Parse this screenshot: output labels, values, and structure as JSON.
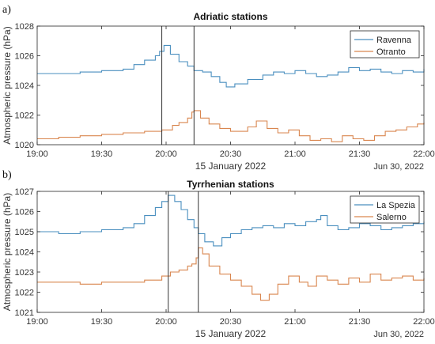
{
  "chart_data": [
    {
      "type": "line",
      "panel_label": "a)",
      "title": "Adriatic stations",
      "ylabel": "Atmospheric pressure (hPa)",
      "xlabel": "15 January 2022",
      "corner_text": "Jun 30, 2022",
      "x_unit": "time HH:MM",
      "xlim": [
        "19:00",
        "22:00"
      ],
      "x_ticks": [
        "19:00",
        "19:30",
        "20:00",
        "20:30",
        "21:00",
        "21:30",
        "22:00"
      ],
      "ylim": [
        1020,
        1028
      ],
      "y_ticks": [
        1020,
        1022,
        1024,
        1026,
        1028
      ],
      "legend_position": "top-right",
      "vlines": [
        "19:58",
        "20:13"
      ],
      "series": [
        {
          "name": "Ravenna",
          "color": "#4a8fbf",
          "x": [
            "19:00",
            "19:10",
            "19:20",
            "19:30",
            "19:40",
            "19:45",
            "19:50",
            "19:55",
            "19:57",
            "19:59",
            "20:02",
            "20:06",
            "20:10",
            "20:13",
            "20:17",
            "20:21",
            "20:25",
            "20:28",
            "20:32",
            "20:38",
            "20:45",
            "20:50",
            "20:55",
            "21:00",
            "21:05",
            "21:10",
            "21:15",
            "21:20",
            "21:25",
            "21:30",
            "21:35",
            "21:40",
            "21:45",
            "21:50",
            "21:55",
            "22:00"
          ],
          "y": [
            1024.8,
            1024.8,
            1024.9,
            1025.0,
            1025.1,
            1025.4,
            1025.7,
            1026.0,
            1026.3,
            1026.7,
            1026.1,
            1025.6,
            1025.3,
            1025.0,
            1024.9,
            1024.6,
            1024.2,
            1023.9,
            1024.1,
            1024.4,
            1024.7,
            1024.9,
            1024.8,
            1025.0,
            1024.8,
            1024.6,
            1024.7,
            1024.9,
            1025.2,
            1025.0,
            1025.1,
            1024.9,
            1024.8,
            1025.0,
            1024.9,
            1025.1
          ]
        },
        {
          "name": "Otranto",
          "color": "#d9864f",
          "x": [
            "19:00",
            "19:10",
            "19:20",
            "19:30",
            "19:40",
            "19:50",
            "19:58",
            "20:03",
            "20:06",
            "20:10",
            "20:12",
            "20:13",
            "20:16",
            "20:20",
            "20:25",
            "20:30",
            "20:38",
            "20:42",
            "20:47",
            "20:52",
            "20:57",
            "21:02",
            "21:07",
            "21:12",
            "21:17",
            "21:22",
            "21:27",
            "21:32",
            "21:37",
            "21:42",
            "21:47",
            "21:52",
            "21:57",
            "22:00"
          ],
          "y": [
            1020.4,
            1020.5,
            1020.6,
            1020.7,
            1020.8,
            1020.9,
            1021.0,
            1021.3,
            1021.5,
            1021.8,
            1022.2,
            1022.3,
            1021.8,
            1021.4,
            1021.1,
            1020.9,
            1021.2,
            1021.6,
            1021.1,
            1020.8,
            1021.0,
            1020.6,
            1020.3,
            1020.4,
            1020.2,
            1020.6,
            1020.4,
            1020.3,
            1020.6,
            1020.9,
            1021.0,
            1021.2,
            1021.4,
            1021.5
          ]
        }
      ]
    },
    {
      "type": "line",
      "panel_label": "b)",
      "title": "Tyrrhenian stations",
      "ylabel": "Atmospheric pressure (hPa)",
      "xlabel": "15 January 2022",
      "corner_text": "Jun 30, 2022",
      "x_unit": "time HH:MM",
      "xlim": [
        "19:00",
        "22:00"
      ],
      "x_ticks": [
        "19:00",
        "19:30",
        "20:00",
        "20:30",
        "21:00",
        "21:30",
        "22:00"
      ],
      "ylim": [
        1021,
        1027
      ],
      "y_ticks": [
        1021,
        1022,
        1023,
        1024,
        1025,
        1026,
        1027
      ],
      "legend_position": "top-right",
      "vlines": [
        "20:01",
        "20:15"
      ],
      "series": [
        {
          "name": "La Spezia",
          "color": "#4a8fbf",
          "x": [
            "19:00",
            "19:10",
            "19:20",
            "19:30",
            "19:40",
            "19:45",
            "19:50",
            "19:55",
            "19:58",
            "20:01",
            "20:04",
            "20:07",
            "20:10",
            "20:13",
            "20:15",
            "20:18",
            "20:22",
            "20:26",
            "20:30",
            "20:35",
            "20:40",
            "20:45",
            "20:50",
            "20:55",
            "21:00",
            "21:05",
            "21:10",
            "21:12",
            "21:15",
            "21:20",
            "21:25",
            "21:30",
            "21:35",
            "21:40",
            "21:45",
            "21:50",
            "21:55",
            "22:00"
          ],
          "y": [
            1025.0,
            1024.9,
            1025.0,
            1025.1,
            1025.2,
            1025.4,
            1025.8,
            1026.2,
            1026.5,
            1026.8,
            1026.5,
            1026.1,
            1025.6,
            1025.2,
            1024.9,
            1024.5,
            1024.3,
            1024.7,
            1024.9,
            1025.1,
            1025.2,
            1025.3,
            1025.2,
            1025.4,
            1025.3,
            1025.5,
            1025.6,
            1025.8,
            1025.3,
            1025.1,
            1025.2,
            1025.4,
            1025.3,
            1025.1,
            1025.2,
            1025.3,
            1025.4,
            1025.5
          ]
        },
        {
          "name": "Salerno",
          "color": "#d9864f",
          "x": [
            "19:00",
            "19:10",
            "19:20",
            "19:30",
            "19:40",
            "19:50",
            "19:58",
            "20:02",
            "20:06",
            "20:10",
            "20:12",
            "20:14",
            "20:15",
            "20:17",
            "20:20",
            "20:25",
            "20:30",
            "20:35",
            "20:40",
            "20:44",
            "20:48",
            "20:52",
            "20:57",
            "21:02",
            "21:06",
            "21:10",
            "21:15",
            "21:20",
            "21:25",
            "21:30",
            "21:35",
            "21:40",
            "21:45",
            "21:50",
            "21:55",
            "22:00"
          ],
          "y": [
            1022.5,
            1022.5,
            1022.4,
            1022.5,
            1022.5,
            1022.6,
            1022.8,
            1023.0,
            1023.1,
            1023.3,
            1023.4,
            1023.7,
            1024.2,
            1023.9,
            1023.3,
            1022.9,
            1022.6,
            1022.3,
            1021.9,
            1021.6,
            1021.9,
            1022.4,
            1022.8,
            1022.5,
            1022.3,
            1022.8,
            1022.6,
            1022.4,
            1022.7,
            1022.5,
            1022.9,
            1022.6,
            1022.7,
            1022.8,
            1022.6,
            1022.7
          ]
        }
      ]
    }
  ]
}
